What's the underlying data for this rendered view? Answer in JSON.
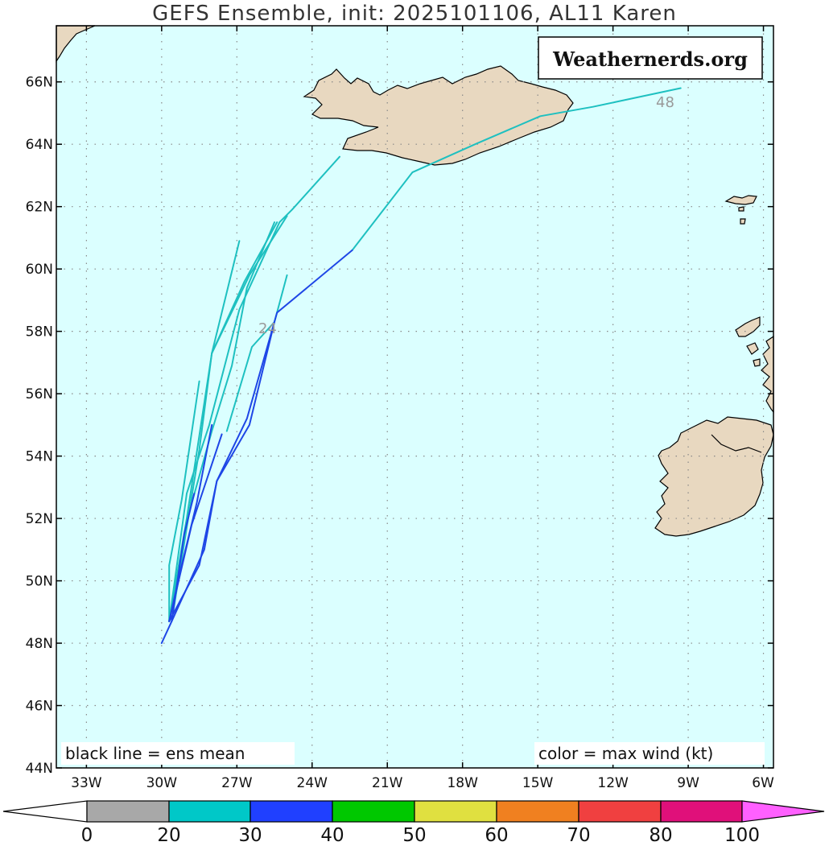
{
  "title": "GEFS Ensemble, init: 2025101106, AL11 Karen",
  "watermark": "Weathernerds.org",
  "legend_left": "black line = ens mean",
  "legend_right": "color = max wind (kt)",
  "hour_labels": [
    "24",
    "48"
  ],
  "lat_labels": [
    "66N",
    "64N",
    "62N",
    "60N",
    "58N",
    "56N",
    "54N",
    "52N",
    "50N",
    "48N",
    "46N",
    "44N"
  ],
  "lon_labels": [
    "33W",
    "30W",
    "27W",
    "24W",
    "21W",
    "18W",
    "15W",
    "12W",
    "9W",
    "6W"
  ],
  "colors": {
    "ocean": "#dbffff",
    "land": "#e8d8c0",
    "grid": "#888888"
  },
  "colorbar": {
    "ticks": [
      "0",
      "20",
      "30",
      "40",
      "50",
      "60",
      "70",
      "80",
      "100"
    ],
    "colors": [
      "#ffffff",
      "#a8a8a8",
      "#00c8c8",
      "#2040ff",
      "#00c800",
      "#e0e040",
      "#f08020",
      "#f04040",
      "#e0107a",
      "#ff60ff"
    ]
  },
  "tracks": [
    {
      "color": "#1ec0c0",
      "points": [
        [
          -29.7,
          48.7
        ],
        [
          -29.7,
          50.5
        ],
        [
          -29.2,
          52.6
        ],
        [
          -28.5,
          56.4
        ]
      ]
    },
    {
      "color": "#1ec0c0",
      "points": [
        [
          -29.6,
          48.7
        ],
        [
          -28.9,
          52.2
        ],
        [
          -28.5,
          54.2
        ],
        [
          -28.0,
          57.3
        ],
        [
          -26.9,
          60.9
        ]
      ]
    },
    {
      "color": "#1ec0c0",
      "points": [
        [
          -29.7,
          48.7
        ],
        [
          -29.0,
          52.0
        ],
        [
          -28.0,
          57.3
        ],
        [
          -26.7,
          59.6
        ],
        [
          -25.4,
          61.5
        ]
      ]
    },
    {
      "color": "#1ec0c0",
      "points": [
        [
          -28.0,
          57.3
        ],
        [
          -26.5,
          59.8
        ],
        [
          -25.0,
          61.7
        ]
      ]
    },
    {
      "color": "#1ec0c0",
      "points": [
        [
          -29.7,
          48.7
        ],
        [
          -29.0,
          52.8
        ],
        [
          -28.1,
          55.0
        ],
        [
          -26.9,
          58.7
        ],
        [
          -25.3,
          61.5
        ],
        [
          -24.8,
          61.9
        ],
        [
          -22.9,
          63.6
        ]
      ]
    },
    {
      "color": "#1ec0c0",
      "points": [
        [
          -29.7,
          48.7
        ],
        [
          -28.9,
          52.2
        ],
        [
          -28.0,
          54.8
        ],
        [
          -27.2,
          56.9
        ],
        [
          -26.6,
          59.4
        ],
        [
          -25.5,
          61.5
        ]
      ]
    },
    {
      "color": "#1ec0c0",
      "points": [
        [
          -27.4,
          54.8
        ],
        [
          -26.4,
          57.5
        ],
        [
          -25.5,
          58.3
        ],
        [
          -25.0,
          59.8
        ]
      ]
    },
    {
      "color": "#1ec0c0",
      "points": [
        [
          -22.4,
          60.6
        ],
        [
          -20.0,
          63.1
        ],
        [
          -17.5,
          64.0
        ],
        [
          -14.9,
          64.9
        ],
        [
          -12.8,
          65.2
        ],
        [
          -9.3,
          65.8
        ]
      ]
    },
    {
      "color": "#1e46e6",
      "points": [
        [
          -30.0,
          48.0
        ],
        [
          -29.6,
          48.7
        ],
        [
          -28.3,
          51.0
        ],
        [
          -27.8,
          53.2
        ],
        [
          -26.6,
          55.2
        ],
        [
          -25.4,
          58.6
        ],
        [
          -22.4,
          60.6
        ]
      ]
    },
    {
      "color": "#1e46e6",
      "points": [
        [
          -29.7,
          48.7
        ],
        [
          -28.5,
          50.5
        ],
        [
          -27.8,
          53.2
        ],
        [
          -26.5,
          55.0
        ],
        [
          -25.5,
          58.3
        ]
      ]
    },
    {
      "color": "#1e46e6",
      "points": [
        [
          -29.7,
          48.7
        ],
        [
          -29.2,
          50.5
        ],
        [
          -28.6,
          52.5
        ],
        [
          -28.0,
          55.0
        ]
      ]
    },
    {
      "color": "#1e46e6",
      "points": [
        [
          -29.7,
          48.7
        ],
        [
          -28.8,
          51.8
        ],
        [
          -27.6,
          54.7
        ]
      ]
    },
    {
      "color": "#1e46e6",
      "points": [
        [
          -29.6,
          48.7
        ],
        [
          -29.1,
          51.5
        ],
        [
          -28.7,
          52.8
        ]
      ]
    }
  ]
}
